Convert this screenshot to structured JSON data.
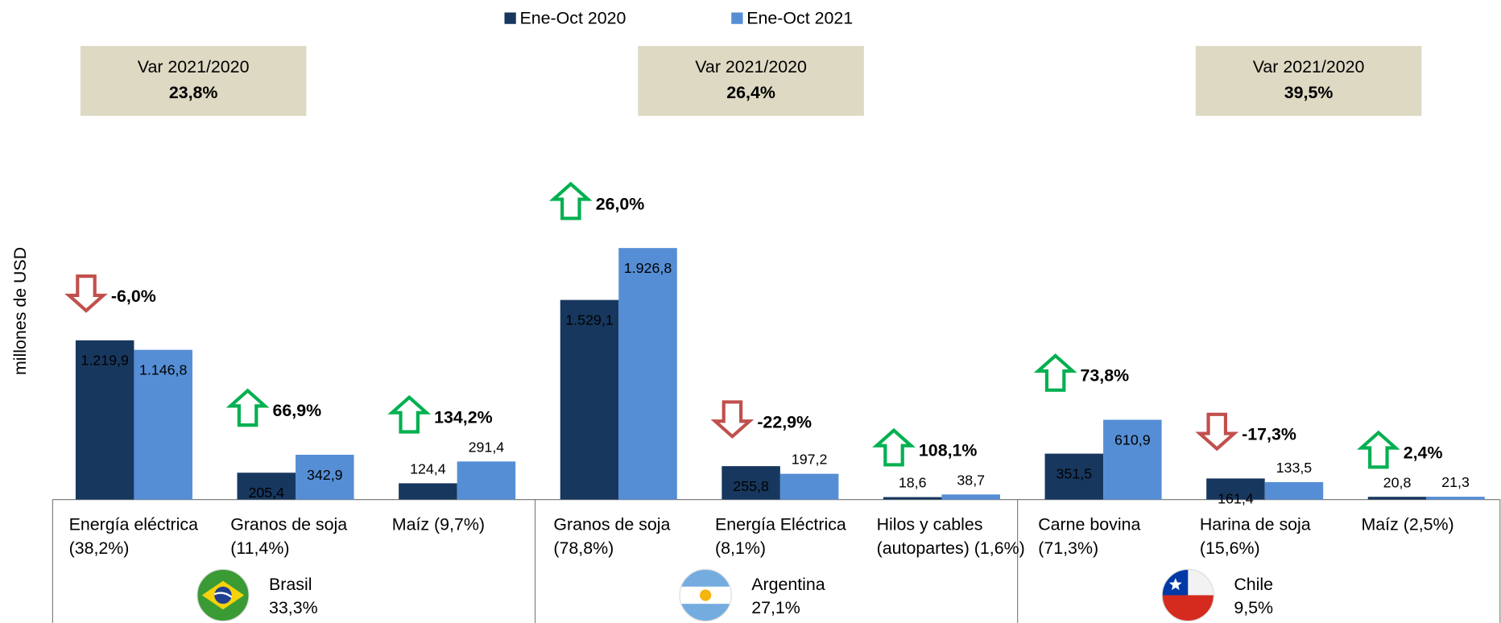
{
  "chart_data": {
    "type": "bar",
    "y_axis_label": "millones de USD",
    "ylim": [
      0,
      2500
    ],
    "categories": [
      [
        "Energía eléctrica",
        "(38,2%)"
      ],
      [
        "Granos de soja",
        "(11,4%)"
      ],
      [
        "Maíz   (9,7%)"
      ],
      [
        "Granos de soja",
        "(78,8%)"
      ],
      [
        "Energía Eléctrica",
        "(8,1%)"
      ],
      [
        "Hilos y cables",
        "(autopartes)  (1,6%)"
      ],
      [
        "Carne bovina",
        "(71,3%)"
      ],
      [
        "Harina de soja",
        "(15,6%)"
      ],
      [
        "Maíz (2,5%)"
      ]
    ],
    "series": [
      {
        "name": "Ene-Oct 2020",
        "color": "#17375e",
        "values": [
          1219.9,
          205.4,
          124.4,
          1529.1,
          255.8,
          18.6,
          351.5,
          161.4,
          20.8
        ],
        "value_labels": [
          "1.219,9",
          "205,4",
          "124,4",
          "1.529,1",
          "255,8",
          "18,6",
          "351,5",
          "161,4",
          "20,8"
        ]
      },
      {
        "name": "Ene-Oct 2021",
        "color": "#558ed5",
        "values": [
          1146.8,
          342.9,
          291.4,
          1926.8,
          197.2,
          38.7,
          610.9,
          133.5,
          21.3
        ],
        "value_labels": [
          "1.146,8",
          "342,9",
          "291,4",
          "1.926,8",
          "197,2",
          "38,7",
          "610,9",
          "133,5",
          "21,3"
        ]
      }
    ],
    "changes": [
      -6.0,
      66.9,
      134.2,
      26.0,
      -22.9,
      108.1,
      73.8,
      -17.3,
      2.4
    ],
    "change_labels": [
      "-6,0%",
      "66,9%",
      "134,2%",
      "26,0%",
      "-22,9%",
      "108,1%",
      "73,8%",
      "-17,3%",
      "2,4%"
    ],
    "up_color": "#00b050",
    "down_color": "#c0504d",
    "groups": [
      {
        "name": "Brasil",
        "share": 33.3,
        "share_label": "33,3%",
        "var_title": "Var 2021/2020",
        "var": 23.8,
        "var_label": "23,8%"
      },
      {
        "name": "Argentina",
        "share": 27.1,
        "share_label": "27,1%",
        "var_title": "Var 2021/2020",
        "var": 26.4,
        "var_label": "26,4%"
      },
      {
        "name": "Chile",
        "share": 9.5,
        "share_label": "9,5%",
        "var_title": "Var 2021/2020",
        "var": 39.5,
        "var_label": "39,5%"
      }
    ]
  }
}
